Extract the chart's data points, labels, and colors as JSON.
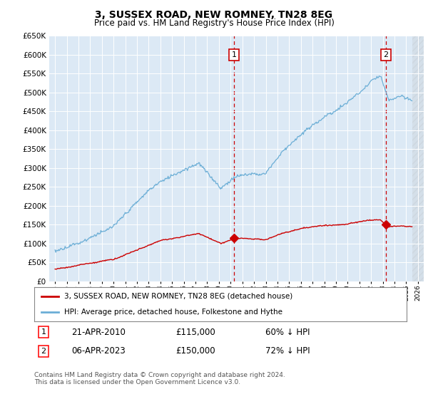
{
  "title": "3, SUSSEX ROAD, NEW ROMNEY, TN28 8EG",
  "subtitle": "Price paid vs. HM Land Registry's House Price Index (HPI)",
  "legend_line1": "3, SUSSEX ROAD, NEW ROMNEY, TN28 8EG (detached house)",
  "legend_line2": "HPI: Average price, detached house, Folkestone and Hythe",
  "footnote": "Contains HM Land Registry data © Crown copyright and database right 2024.\nThis data is licensed under the Open Government Licence v3.0.",
  "sale1_date": "21-APR-2010",
  "sale1_price": "£115,000",
  "sale1_hpi": "60% ↓ HPI",
  "sale2_date": "06-APR-2023",
  "sale2_price": "£150,000",
  "sale2_hpi": "72% ↓ HPI",
  "hpi_color": "#6baed6",
  "price_color": "#cc0000",
  "background_color": "#dce9f5",
  "sale1_year": 2010.3,
  "sale2_year": 2023.27,
  "sale1_price_val": 115000,
  "sale2_price_val": 150000,
  "ylim": [
    0,
    650000
  ],
  "xlim_start": 1994.5,
  "xlim_end": 2026.5,
  "hatch_start": 2025.5
}
